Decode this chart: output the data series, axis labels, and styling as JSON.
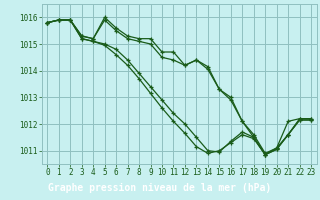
{
  "title": "Graphe pression niveau de la mer (hPa)",
  "background_color": "#b8e8e8",
  "plot_bg_color": "#c8f0f0",
  "grid_color": "#90c0c0",
  "line_color": "#1a5c1a",
  "title_bg": "#2a6e2a",
  "title_fg": "#ffffff",
  "xlim": [
    -0.5,
    23.5
  ],
  "ylim": [
    1010.5,
    1016.5
  ],
  "yticks": [
    1011,
    1012,
    1013,
    1014,
    1015,
    1016
  ],
  "xticks": [
    0,
    1,
    2,
    3,
    4,
    5,
    6,
    7,
    8,
    9,
    10,
    11,
    12,
    13,
    14,
    15,
    16,
    17,
    18,
    19,
    20,
    21,
    22,
    23
  ],
  "series": [
    [
      1015.8,
      1015.9,
      1015.9,
      1015.3,
      1015.2,
      1016.0,
      1015.6,
      1015.3,
      1015.2,
      1015.2,
      1014.7,
      1014.7,
      1014.2,
      1014.4,
      1014.15,
      1013.3,
      1013.0,
      1012.1,
      1011.6,
      1010.9,
      1011.1,
      1012.1,
      1012.2,
      1012.2
    ],
    [
      1015.8,
      1015.9,
      1015.9,
      1015.3,
      1015.2,
      1015.9,
      1015.5,
      1015.2,
      1015.1,
      1015.0,
      1014.5,
      1014.4,
      1014.2,
      1014.4,
      1014.05,
      1013.3,
      1012.9,
      1012.1,
      1011.5,
      1010.85,
      1011.05,
      1011.6,
      1012.15,
      1012.15
    ],
    [
      1015.8,
      1015.9,
      1015.9,
      1015.2,
      1015.1,
      1015.0,
      1014.8,
      1014.4,
      1013.9,
      1013.4,
      1012.9,
      1012.4,
      1012.0,
      1011.5,
      1011.0,
      1010.95,
      1011.35,
      1011.7,
      1011.5,
      1010.85,
      1011.1,
      1011.6,
      1012.15,
      1012.15
    ],
    [
      1015.8,
      1015.9,
      1015.9,
      1015.2,
      1015.1,
      1014.95,
      1014.6,
      1014.2,
      1013.7,
      1013.15,
      1012.6,
      1012.1,
      1011.65,
      1011.15,
      1010.9,
      1011.0,
      1011.3,
      1011.6,
      1011.45,
      1010.85,
      1011.05,
      1011.6,
      1012.2,
      1012.2
    ]
  ]
}
